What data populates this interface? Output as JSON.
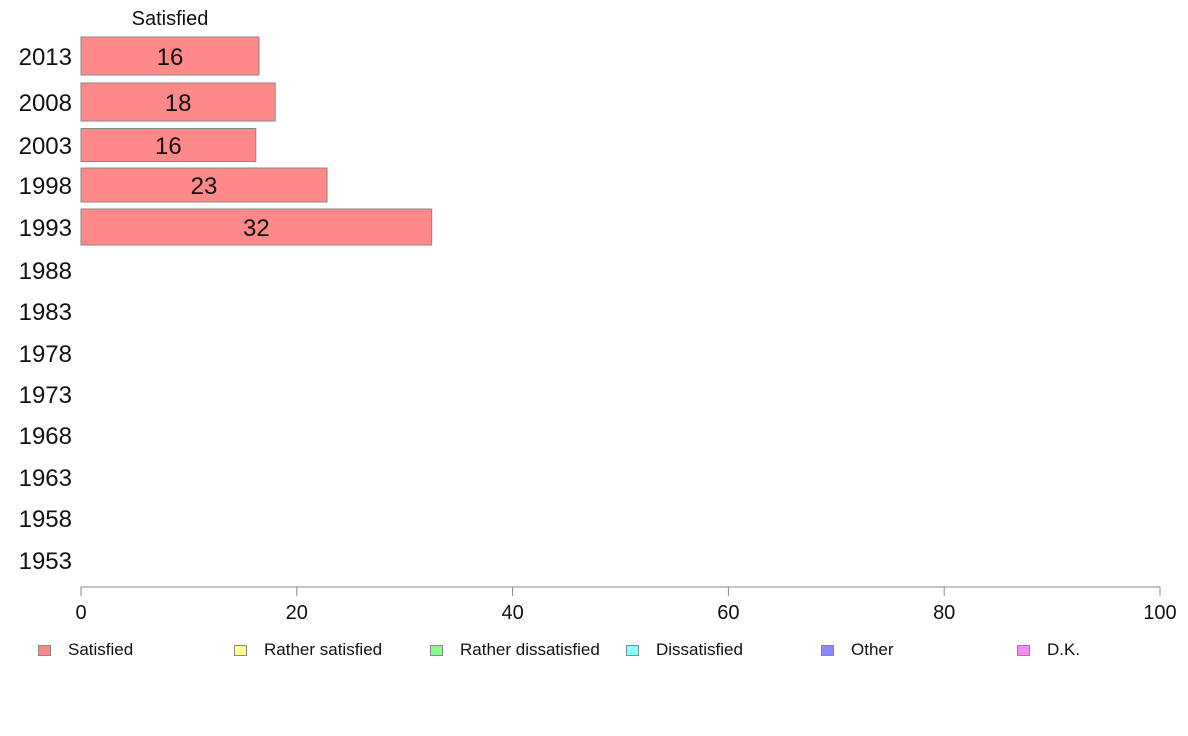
{
  "chart_data": {
    "type": "bar",
    "orientation": "horizontal",
    "stacked": true,
    "categories": [
      "2013",
      "2008",
      "2003",
      "1998",
      "1993",
      "1988",
      "1983",
      "1978",
      "1973",
      "1968",
      "1963",
      "1958",
      "1953"
    ],
    "series": [
      {
        "name": "Satisfied",
        "color": "#ff8888",
        "values": [
          16.5,
          18,
          16.2,
          22.8,
          32.5,
          null,
          null,
          null,
          null,
          null,
          null,
          null,
          null
        ],
        "labels": [
          "16",
          "18",
          "16",
          "23",
          "32",
          "",
          "",
          "",
          "",
          "",
          "",
          "",
          ""
        ]
      },
      {
        "name": "Rather satisfied",
        "color": "#ffff88",
        "values": [
          null,
          null,
          null,
          null,
          null,
          null,
          null,
          null,
          null,
          null,
          null,
          null,
          null
        ]
      },
      {
        "name": "Rather dissatisfied",
        "color": "#88ff88",
        "values": [
          null,
          null,
          null,
          null,
          null,
          null,
          null,
          null,
          null,
          null,
          null,
          null,
          null
        ]
      },
      {
        "name": "Dissatisfied",
        "color": "#88ffff",
        "values": [
          null,
          null,
          null,
          null,
          null,
          null,
          null,
          null,
          null,
          null,
          null,
          null,
          null
        ]
      },
      {
        "name": "Other",
        "color": "#8888ff",
        "values": [
          null,
          null,
          null,
          null,
          null,
          null,
          null,
          null,
          null,
          null,
          null,
          null,
          null
        ]
      },
      {
        "name": "D.K.",
        "color": "#ff88ff",
        "values": [
          null,
          null,
          null,
          null,
          null,
          null,
          null,
          null,
          null,
          null,
          null,
          null,
          null
        ]
      }
    ],
    "column_header": "Satisfied",
    "xlim": [
      0,
      100
    ],
    "x_ticks": [
      "0",
      "20",
      "40",
      "60",
      "80",
      "100"
    ],
    "grid": false,
    "legend_position": "bottom"
  }
}
